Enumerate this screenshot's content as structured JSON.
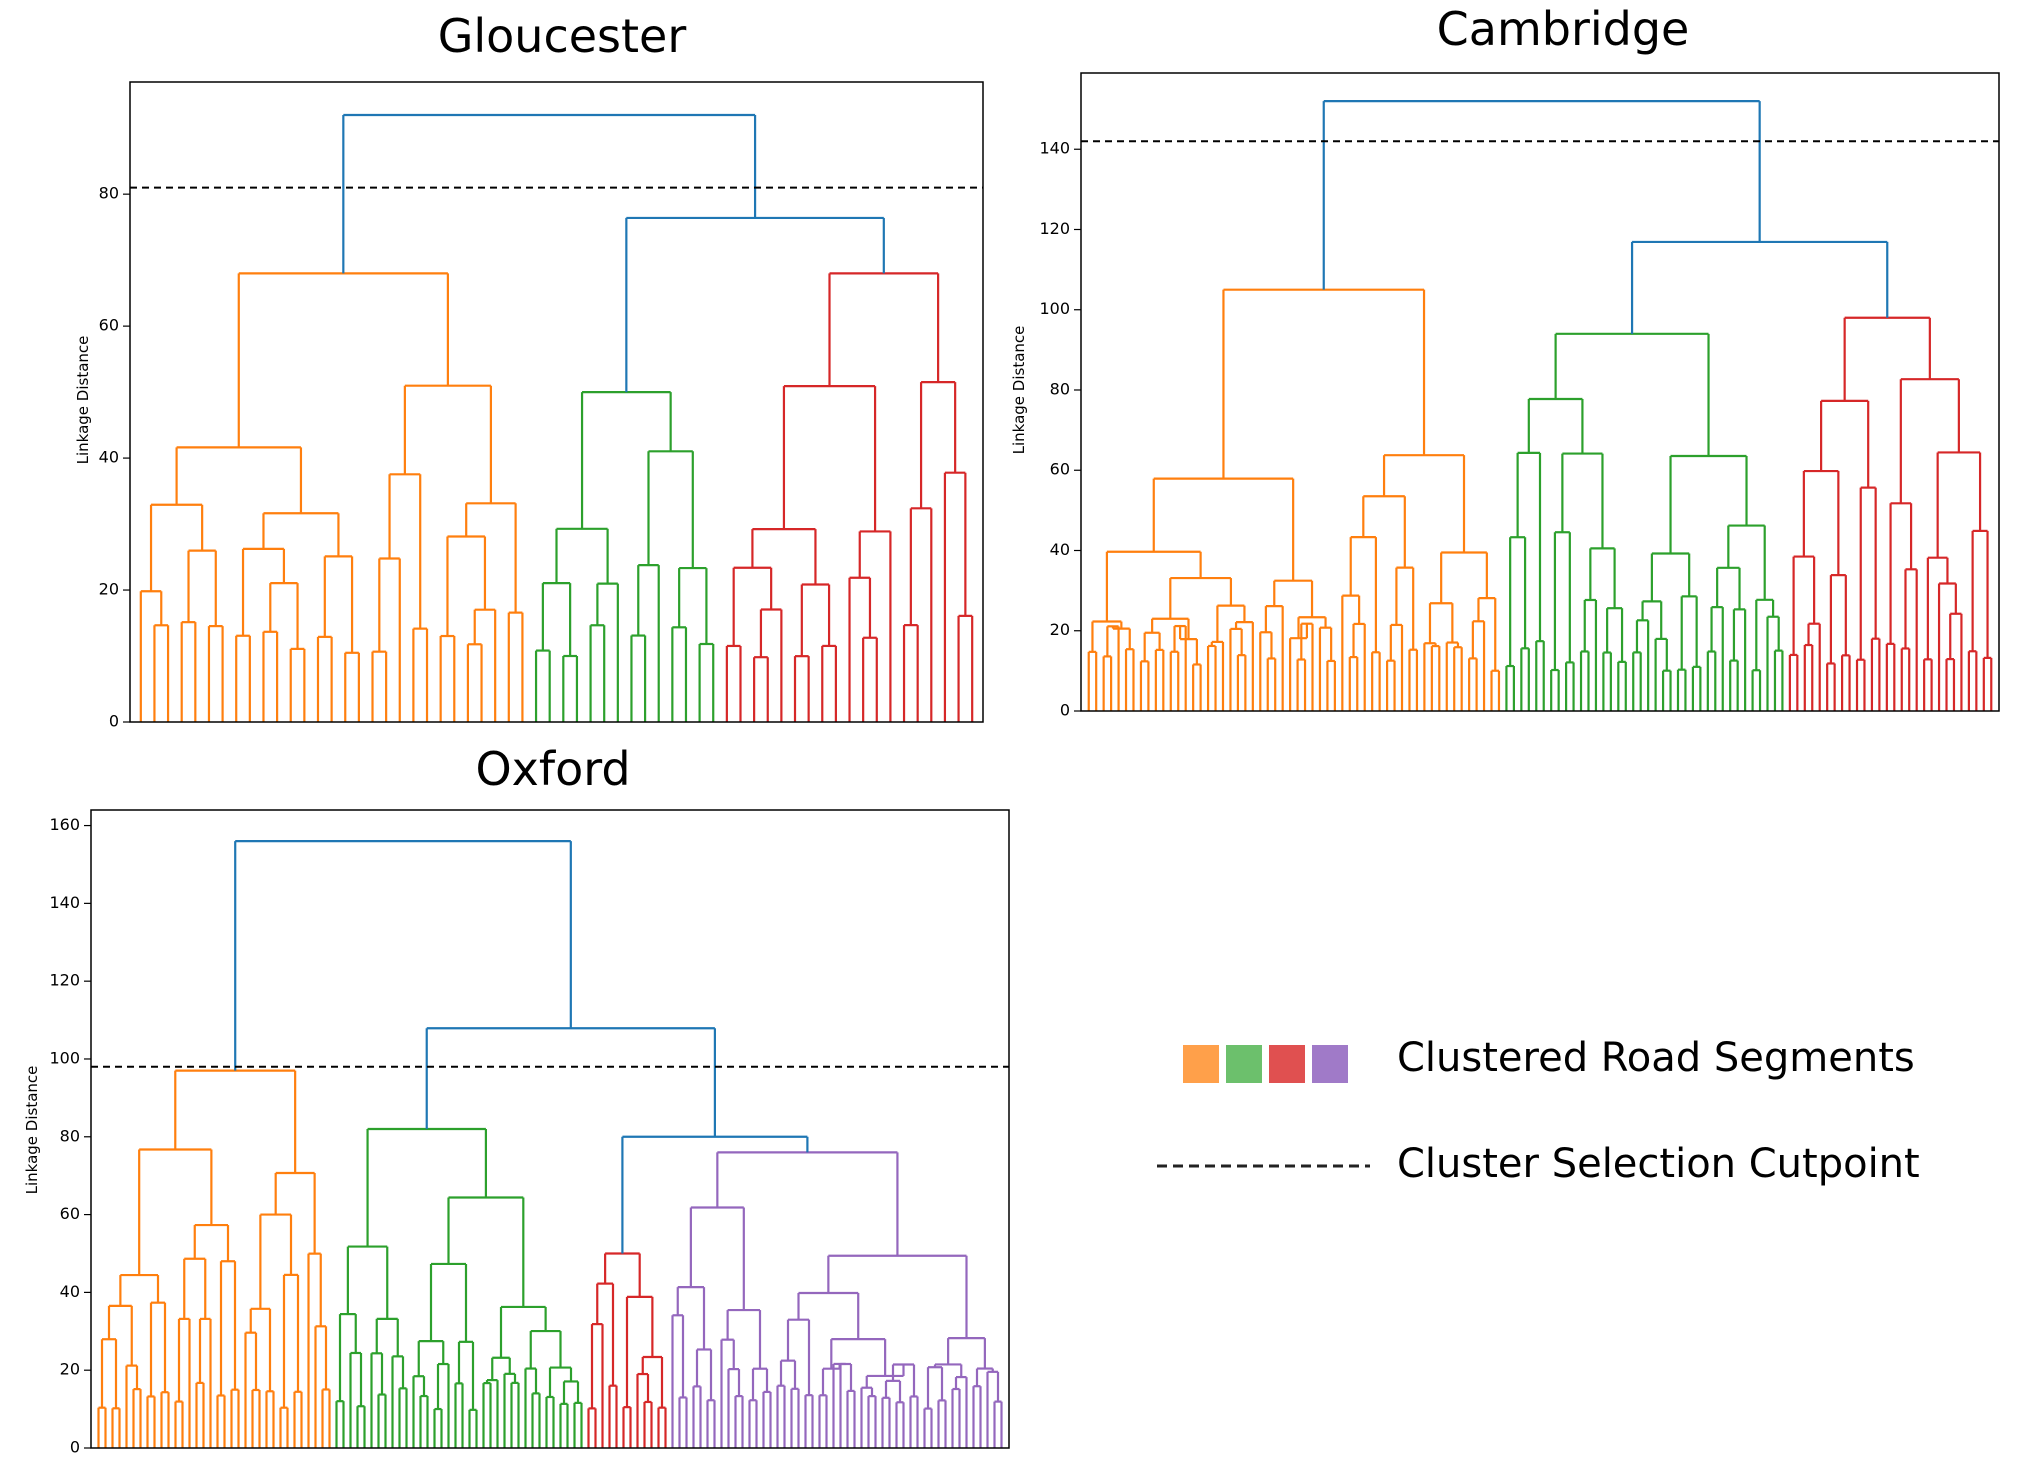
{
  "colors": {
    "orange": "#ff7f0e",
    "green": "#2ca02c",
    "red": "#d62728",
    "purple": "#9467bd",
    "blue": "#1f77b4",
    "cut": "#000000"
  },
  "legend": {
    "swatch_colors": [
      "#ffa04a",
      "#6cc06c",
      "#e05050",
      "#a07ac8"
    ],
    "clusters_label": "Clustered Road Segments",
    "cutpoint_label": "Cluster Selection Cutpoint"
  },
  "chart_data": [
    {
      "type": "dendrogram",
      "title": "Gloucester",
      "ylabel": "Linkage Distance",
      "yticks": [
        0,
        20,
        40,
        60,
        80
      ],
      "ylim": [
        0,
        97
      ],
      "cutpoint": 81,
      "root_height": 92,
      "clusters": [
        {
          "color": "orange",
          "leaves": 29,
          "merge_height": 68
        },
        {
          "color": "green",
          "leaves": 14,
          "merge_height": 50
        },
        {
          "color": "red",
          "leaves": 19,
          "merge_height": 68
        }
      ]
    },
    {
      "type": "dendrogram",
      "title": "Cambridge",
      "ylabel": "Linkage Distance",
      "yticks": [
        0,
        20,
        40,
        60,
        80,
        100,
        120,
        140
      ],
      "ylim": [
        0,
        159
      ],
      "cutpoint": 142,
      "root_height": 152,
      "clusters": [
        {
          "color": "orange",
          "leaves": 56,
          "merge_height": 105
        },
        {
          "color": "green",
          "leaves": 38,
          "merge_height": 94
        },
        {
          "color": "red",
          "leaves": 28,
          "merge_height": 98
        }
      ]
    },
    {
      "type": "dendrogram",
      "title": "Oxford",
      "ylabel": "Linkage Distance",
      "yticks": [
        0,
        20,
        40,
        60,
        80,
        100,
        120,
        140,
        160
      ],
      "ylim": [
        0,
        164
      ],
      "cutpoint": 98,
      "root_height": 156,
      "clusters": [
        {
          "color": "orange",
          "leaves": 34,
          "merge_height": 97
        },
        {
          "color": "green",
          "leaves": 36,
          "merge_height": 82
        },
        {
          "color": "red",
          "leaves": 12,
          "merge_height": 50
        },
        {
          "color": "purple",
          "leaves": 48,
          "merge_height": 76
        }
      ]
    }
  ]
}
